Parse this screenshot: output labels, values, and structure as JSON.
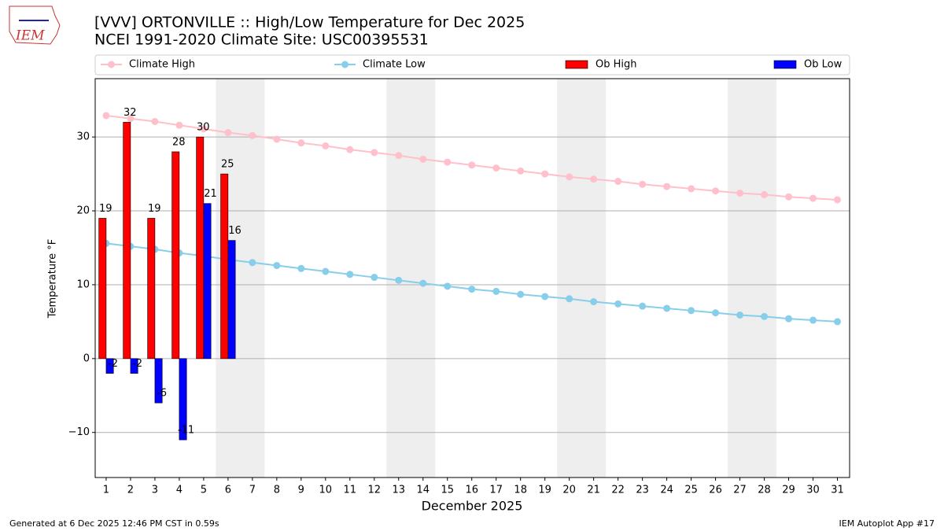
{
  "chart_data": {
    "type": "bar",
    "title": "[VVV] ORTONVILLE :: High/Low Temperature for Dec 2025",
    "subtitle": "NCEI 1991-2020 Climate Site: USC00395531",
    "logo_text": "IEM",
    "xlabel": "December 2025",
    "ylabel": "Temperature °F",
    "footer_left": "Generated at 6 Dec 2025 12:46 PM CST in 0.59s",
    "footer_right": "IEM Autoplot App #17",
    "x": [
      1,
      2,
      3,
      4,
      5,
      6,
      7,
      8,
      9,
      10,
      11,
      12,
      13,
      14,
      15,
      16,
      17,
      18,
      19,
      20,
      21,
      22,
      23,
      24,
      25,
      26,
      27,
      28,
      29,
      30,
      31
    ],
    "xlim": [
      0.55,
      31.5
    ],
    "xticks": [
      1,
      2,
      3,
      4,
      5,
      6,
      7,
      8,
      9,
      10,
      11,
      12,
      13,
      14,
      15,
      16,
      17,
      18,
      19,
      20,
      21,
      22,
      23,
      24,
      25,
      26,
      27,
      28,
      29,
      30,
      31
    ],
    "ylim": [
      -16.1,
      37.9
    ],
    "yticks": [
      {
        "value": -10,
        "label": "−10"
      },
      0,
      10,
      20,
      30
    ],
    "grid": true,
    "shaded_x": [
      [
        5.5,
        7.5
      ],
      [
        12.5,
        14.5
      ],
      [
        19.5,
        21.5
      ],
      [
        26.5,
        28.5
      ]
    ],
    "shade_color": "#eeeeee",
    "series": [
      {
        "name": "Climate High",
        "type": "line",
        "color": "#ffc0cb",
        "values": [
          32.9,
          32.5,
          32.1,
          31.6,
          31.1,
          30.6,
          30.2,
          29.7,
          29.2,
          28.8,
          28.3,
          27.9,
          27.5,
          27.0,
          26.6,
          26.2,
          25.8,
          25.4,
          25.0,
          24.6,
          24.3,
          24.0,
          23.6,
          23.3,
          23.0,
          22.7,
          22.4,
          22.2,
          21.9,
          21.7,
          21.5
        ]
      },
      {
        "name": "Climate Low",
        "type": "line",
        "color": "#87ceeb",
        "values": [
          15.6,
          15.2,
          14.8,
          14.3,
          13.9,
          13.4,
          13.0,
          12.6,
          12.2,
          11.8,
          11.4,
          11.0,
          10.6,
          10.2,
          9.8,
          9.4,
          9.1,
          8.7,
          8.4,
          8.1,
          7.7,
          7.4,
          7.1,
          6.8,
          6.5,
          6.2,
          5.9,
          5.7,
          5.4,
          5.2,
          5.0
        ]
      },
      {
        "name": "Ob High",
        "type": "bar",
        "color": "#ff0000",
        "values": [
          19,
          32,
          19,
          28,
          30,
          25,
          null,
          null,
          null,
          null,
          null,
          null,
          null,
          null,
          null,
          null,
          null,
          null,
          null,
          null,
          null,
          null,
          null,
          null,
          null,
          null,
          null,
          null,
          null,
          null,
          null
        ]
      },
      {
        "name": "Ob Low",
        "type": "bar",
        "color": "#0000ff",
        "values": [
          -2,
          -2,
          -6,
          -11,
          21,
          16,
          null,
          null,
          null,
          null,
          null,
          null,
          null,
          null,
          null,
          null,
          null,
          null,
          null,
          null,
          null,
          null,
          null,
          null,
          null,
          null,
          null,
          null,
          null,
          null,
          null
        ]
      }
    ]
  }
}
